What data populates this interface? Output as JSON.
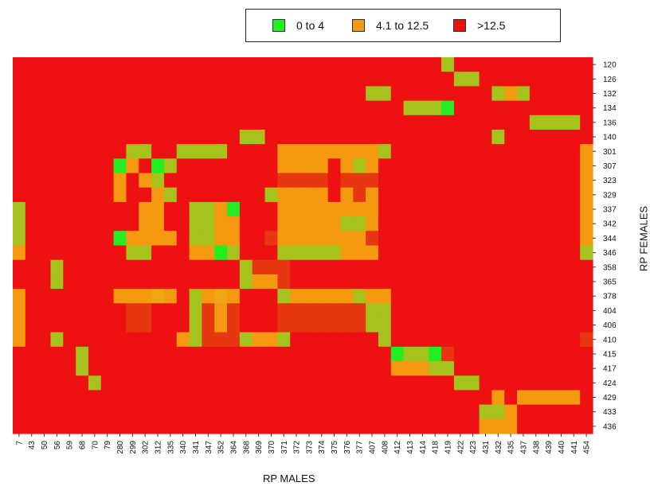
{
  "chart_data": {
    "type": "heatmap",
    "title": "",
    "xlabel": "RP MALES",
    "ylabel": "RP FEMALES",
    "x_categories": [
      "7",
      "43",
      "50",
      "56",
      "59",
      "68",
      "70",
      "79",
      "280",
      "299",
      "302",
      "312",
      "335",
      "340",
      "341",
      "347",
      "352",
      "364",
      "368",
      "369",
      "370",
      "371",
      "372",
      "373",
      "374",
      "375",
      "376",
      "377",
      "407",
      "408",
      "412",
      "413",
      "414",
      "418",
      "419",
      "422",
      "423",
      "431",
      "432",
      "435",
      "437",
      "438",
      "439",
      "440",
      "441",
      "454"
    ],
    "y_categories": [
      "120",
      "126",
      "132",
      "134",
      "136",
      "140",
      "301",
      "307",
      "323",
      "329",
      "337",
      "342",
      "344",
      "346",
      "358",
      "365",
      "378",
      "404",
      "406",
      "410",
      "415",
      "417",
      "424",
      "429",
      "433",
      "436"
    ],
    "legend": [
      {
        "key": "A",
        "label": "0 to 4",
        "color": "#22ee22"
      },
      {
        "key": "B",
        "label": "4.1 to 12.5",
        "color": "#f59a10"
      },
      {
        "key": "C",
        "label": ">12.5",
        "color": "#ee1111"
      }
    ],
    "cell_colors": {
      "R": "#ee1111",
      "D": "#e83612",
      "O": "#f59a10",
      "Y": "#eea516",
      "L": "#a6c21c",
      "G": "#22ee22"
    },
    "grid_note": "category codes: G/L = 0 to 4, O/Y/D = 4.1 to 12.5 shades, R = >12.5",
    "rows": [
      "RRRRRRRRRRRRRRRRRRRRRRRRRRRRRRRRRRLRRRRRRRRRRR",
      "RRRRRRRRRRRRRRRRRRRRRRRRRRRRRRRRRRRLLRRRRRRRRR",
      "RRRRRRRRRRRRRRRRRRRRRRRRRRRRLLRRRRRRRRLOLRRRRR",
      "RRRRRRRRRRRRRRRRRRRRRRRRRRRRRRRLLLGRRRRRRRRRRR",
      "RRRRRRRRRRRRRRRRRRRRRRRRRRRRRRRRRRRRRRRRRLLLLR",
      "RRRRRRRRRRRRRRRRRRLLRRRRRRRRRRRRRRRRRRLRRRRRRR",
      "RRRRRRRRRLLRRLLLLRRRROOOOOOOOLRRRRRRRRRRRRRRRO",
      "RRRRRRRRGORGLRRRRRRRROOOOROLORRRRRRRRRRRRRRRRO",
      "RRRRRRRROROLRRRRRRRRRDDDDRDDDRRRRRRRRRRRRRRRRO",
      "RRRRRRRRORROLRRRRRRRLOOOORODORRRRRRRRRRRRRRRRO",
      "LRRRRRRRRROORRLLOGRRROOOOOOOORRRRRRRRRRRRRRRRO",
      "LRRRRRRRRROORRLLOORRROOOOOLLORRRRRRRRRRRRRRRRO",
      "LRRRRRRRGOOOORLLOORRDOOOOOOODRRRRRRRRRRRRRRRRO",
      "ORRRRRRRRLLRRROOGLRRRLLLLLOOORRRRRRRRRRRRRRRRL",
      "RRRLRRRRRRRRRRRRRRLDDDRRRRRRRRRRRRRRRRRRRRRRRR",
      "RRRLRRRRRRRRRRRRRRLOODRRRRRRRRRRRRRRRRRRRRRRRR",
      "ORRRRRRROOOYORLOYORRRLOOOOOLOORRRRRRRRRRRRRRRR",
      "ORRRRRRRRDDRRRLDODRRRDDDDDDDLLRRRRRRRRRRRRRRRR",
      "ORRRRRRRRDDRRRLDODRRRDDDDDDDLLRRRRRRRRRRRRRRRR",
      "ORRLRRRRRRRRROLDDDLOOLRRRRRRRLRRRRRRRRRRRRRRRD",
      "RRRRRLRRRRRRRRRRRRRRRRRRRRRRRRGLLGDRRRRRRRRRRR",
      "RRRRRLRRRRRRRRRRRRRRRRRRRRRRRROOOLLRRRRRRRRRRR",
      "RRRRRRLRRRRRRRRRRRRRRRRRRRRRRRRRRRRLLRRRRRRRRR",
      "RRRRRRRRRRRRRRRRRRRRRRRRRRRRRRRRRRRRRROROOOOOR",
      "RRRRRRRRRRRRRRRRRRRRRRRRRRRRRRRRRRRRRLLORRRRRR",
      "RRRRRRRRRRRRRRRRRRRRRRRRRRRRRRRRRRRRROOORRRRRR"
    ]
  }
}
